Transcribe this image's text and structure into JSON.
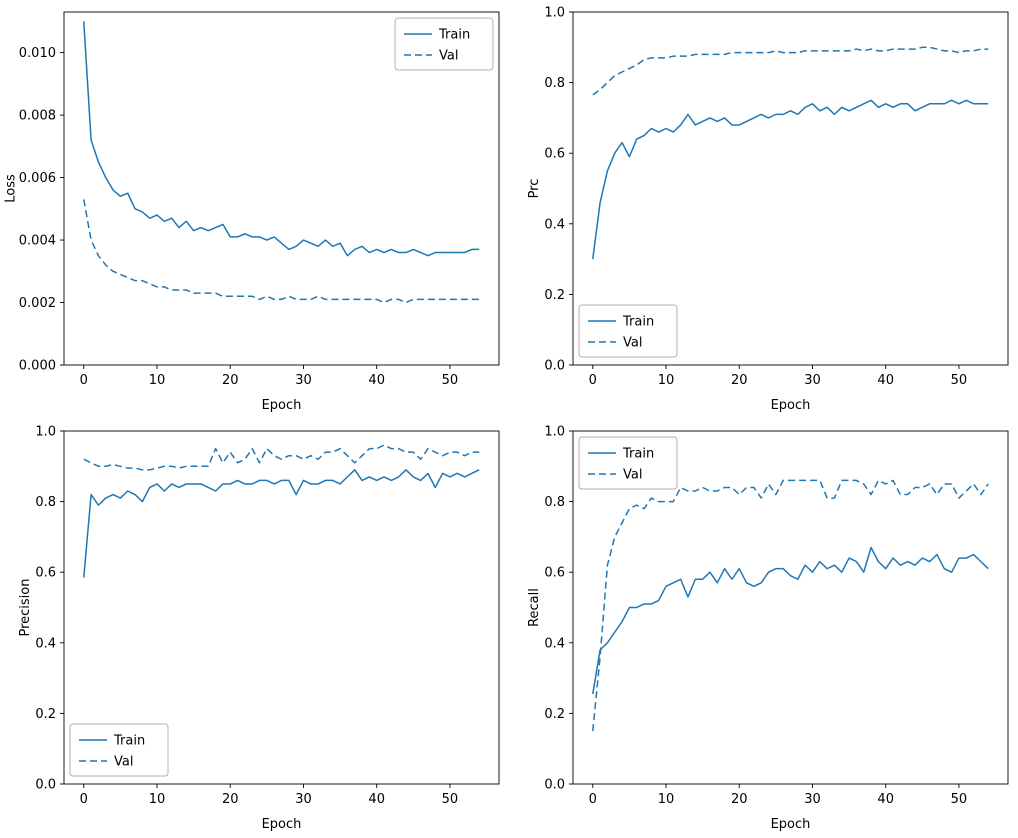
{
  "figure": {
    "background": "#ffffff",
    "accent_color": "#1f77b4"
  },
  "chart_data": [
    {
      "id": "loss",
      "type": "line",
      "title": "",
      "xlabel": "Epoch",
      "ylabel": "Loss",
      "xlim": [
        -2.7,
        56.7
      ],
      "ylim": [
        0,
        0.0113
      ],
      "xticks": [
        0,
        10,
        20,
        30,
        40,
        50
      ],
      "xtick_labels": [
        "0",
        "10",
        "20",
        "30",
        "40",
        "50"
      ],
      "yticks": [
        0,
        0.002,
        0.004,
        0.006,
        0.008,
        0.01
      ],
      "ytick_labels": [
        "0.000",
        "0.002",
        "0.004",
        "0.006",
        "0.008",
        "0.010"
      ],
      "grid": false,
      "legend": {
        "position": "upper-right",
        "entries": [
          {
            "label": "Train",
            "style": "solid"
          },
          {
            "label": "Val",
            "style": "dashed"
          }
        ]
      },
      "x": [
        0,
        1,
        2,
        3,
        4,
        5,
        6,
        7,
        8,
        9,
        10,
        11,
        12,
        13,
        14,
        15,
        16,
        17,
        18,
        19,
        20,
        21,
        22,
        23,
        24,
        25,
        26,
        27,
        28,
        29,
        30,
        31,
        32,
        33,
        34,
        35,
        36,
        37,
        38,
        39,
        40,
        41,
        42,
        43,
        44,
        45,
        46,
        47,
        48,
        49,
        50,
        51,
        52,
        53,
        54
      ],
      "series": [
        {
          "name": "Train",
          "style": "solid",
          "color": "#1f77b4",
          "values": [
            0.011,
            0.0072,
            0.0065,
            0.006,
            0.0056,
            0.0054,
            0.0055,
            0.005,
            0.0049,
            0.0047,
            0.0048,
            0.0046,
            0.0047,
            0.0044,
            0.0046,
            0.0043,
            0.0044,
            0.0043,
            0.0044,
            0.0045,
            0.0041,
            0.0041,
            0.0042,
            0.0041,
            0.0041,
            0.004,
            0.0041,
            0.0039,
            0.0037,
            0.0038,
            0.004,
            0.0039,
            0.0038,
            0.004,
            0.0038,
            0.0039,
            0.0035,
            0.0037,
            0.0038,
            0.0036,
            0.0037,
            0.0036,
            0.0037,
            0.0036,
            0.0036,
            0.0037,
            0.0036,
            0.0035,
            0.0036,
            0.0036,
            0.0036,
            0.0036,
            0.0036,
            0.0037,
            0.0037
          ]
        },
        {
          "name": "Val",
          "style": "dashed",
          "color": "#1f77b4",
          "values": [
            0.0053,
            0.004,
            0.0035,
            0.0032,
            0.003,
            0.0029,
            0.0028,
            0.0027,
            0.0027,
            0.0026,
            0.0025,
            0.0025,
            0.0024,
            0.0024,
            0.0024,
            0.0023,
            0.0023,
            0.0023,
            0.0023,
            0.0022,
            0.0022,
            0.0022,
            0.0022,
            0.0022,
            0.0021,
            0.0022,
            0.0021,
            0.0021,
            0.0022,
            0.0021,
            0.0021,
            0.0021,
            0.0022,
            0.0021,
            0.0021,
            0.0021,
            0.0021,
            0.0021,
            0.0021,
            0.0021,
            0.0021,
            0.002,
            0.0021,
            0.0021,
            0.002,
            0.0021,
            0.0021,
            0.0021,
            0.0021,
            0.0021,
            0.0021,
            0.0021,
            0.0021,
            0.0021,
            0.0021
          ]
        }
      ]
    },
    {
      "id": "prc",
      "type": "line",
      "title": "",
      "xlabel": "Epoch",
      "ylabel": "Prc",
      "xlim": [
        -2.7,
        56.7
      ],
      "ylim": [
        0,
        1
      ],
      "xticks": [
        0,
        10,
        20,
        30,
        40,
        50
      ],
      "xtick_labels": [
        "0",
        "10",
        "20",
        "30",
        "40",
        "50"
      ],
      "yticks": [
        0,
        0.2,
        0.4,
        0.6,
        0.8,
        1.0
      ],
      "ytick_labels": [
        "0.0",
        "0.2",
        "0.4",
        "0.6",
        "0.8",
        "1.0"
      ],
      "grid": false,
      "legend": {
        "position": "lower-left",
        "entries": [
          {
            "label": "Train",
            "style": "solid"
          },
          {
            "label": "Val",
            "style": "dashed"
          }
        ]
      },
      "x": [
        0,
        1,
        2,
        3,
        4,
        5,
        6,
        7,
        8,
        9,
        10,
        11,
        12,
        13,
        14,
        15,
        16,
        17,
        18,
        19,
        20,
        21,
        22,
        23,
        24,
        25,
        26,
        27,
        28,
        29,
        30,
        31,
        32,
        33,
        34,
        35,
        36,
        37,
        38,
        39,
        40,
        41,
        42,
        43,
        44,
        45,
        46,
        47,
        48,
        49,
        50,
        51,
        52,
        53,
        54
      ],
      "series": [
        {
          "name": "Train",
          "style": "solid",
          "color": "#1f77b4",
          "values": [
            0.3,
            0.46,
            0.55,
            0.6,
            0.63,
            0.59,
            0.64,
            0.65,
            0.67,
            0.66,
            0.67,
            0.66,
            0.68,
            0.71,
            0.68,
            0.69,
            0.7,
            0.69,
            0.7,
            0.68,
            0.68,
            0.69,
            0.7,
            0.71,
            0.7,
            0.71,
            0.71,
            0.72,
            0.71,
            0.73,
            0.74,
            0.72,
            0.73,
            0.71,
            0.73,
            0.72,
            0.73,
            0.74,
            0.75,
            0.73,
            0.74,
            0.73,
            0.74,
            0.74,
            0.72,
            0.73,
            0.74,
            0.74,
            0.74,
            0.75,
            0.74,
            0.75,
            0.74,
            0.74,
            0.74
          ]
        },
        {
          "name": "Val",
          "style": "dashed",
          "color": "#1f77b4",
          "values": [
            0.765,
            0.78,
            0.8,
            0.82,
            0.83,
            0.84,
            0.85,
            0.865,
            0.87,
            0.87,
            0.87,
            0.875,
            0.875,
            0.875,
            0.88,
            0.88,
            0.88,
            0.88,
            0.88,
            0.885,
            0.885,
            0.885,
            0.885,
            0.885,
            0.885,
            0.89,
            0.885,
            0.885,
            0.885,
            0.89,
            0.89,
            0.89,
            0.89,
            0.89,
            0.89,
            0.89,
            0.895,
            0.89,
            0.895,
            0.89,
            0.89,
            0.895,
            0.895,
            0.895,
            0.895,
            0.9,
            0.9,
            0.895,
            0.89,
            0.89,
            0.885,
            0.89,
            0.89,
            0.895,
            0.895
          ]
        }
      ]
    },
    {
      "id": "precision",
      "type": "line",
      "title": "",
      "xlabel": "Epoch",
      "ylabel": "Precision",
      "xlim": [
        -2.7,
        56.7
      ],
      "ylim": [
        0,
        1
      ],
      "xticks": [
        0,
        10,
        20,
        30,
        40,
        50
      ],
      "xtick_labels": [
        "0",
        "10",
        "20",
        "30",
        "40",
        "50"
      ],
      "yticks": [
        0,
        0.2,
        0.4,
        0.6,
        0.8,
        1.0
      ],
      "ytick_labels": [
        "0.0",
        "0.2",
        "0.4",
        "0.6",
        "0.8",
        "1.0"
      ],
      "grid": false,
      "legend": {
        "position": "lower-left",
        "entries": [
          {
            "label": "Train",
            "style": "solid"
          },
          {
            "label": "Val",
            "style": "dashed"
          }
        ]
      },
      "x": [
        0,
        1,
        2,
        3,
        4,
        5,
        6,
        7,
        8,
        9,
        10,
        11,
        12,
        13,
        14,
        15,
        16,
        17,
        18,
        19,
        20,
        21,
        22,
        23,
        24,
        25,
        26,
        27,
        28,
        29,
        30,
        31,
        32,
        33,
        34,
        35,
        36,
        37,
        38,
        39,
        40,
        41,
        42,
        43,
        44,
        45,
        46,
        47,
        48,
        49,
        50,
        51,
        52,
        53,
        54
      ],
      "series": [
        {
          "name": "Train",
          "style": "solid",
          "color": "#1f77b4",
          "values": [
            0.585,
            0.82,
            0.79,
            0.81,
            0.82,
            0.81,
            0.83,
            0.82,
            0.8,
            0.84,
            0.85,
            0.83,
            0.85,
            0.84,
            0.85,
            0.85,
            0.85,
            0.84,
            0.83,
            0.85,
            0.85,
            0.86,
            0.85,
            0.85,
            0.86,
            0.86,
            0.85,
            0.86,
            0.86,
            0.82,
            0.86,
            0.85,
            0.85,
            0.86,
            0.86,
            0.85,
            0.87,
            0.89,
            0.86,
            0.87,
            0.86,
            0.87,
            0.86,
            0.87,
            0.89,
            0.87,
            0.86,
            0.88,
            0.84,
            0.88,
            0.87,
            0.88,
            0.87,
            0.88,
            0.89
          ]
        },
        {
          "name": "Val",
          "style": "dashed",
          "color": "#1f77b4",
          "values": [
            0.92,
            0.91,
            0.9,
            0.9,
            0.905,
            0.9,
            0.895,
            0.895,
            0.89,
            0.89,
            0.895,
            0.9,
            0.9,
            0.895,
            0.9,
            0.9,
            0.9,
            0.9,
            0.95,
            0.91,
            0.94,
            0.91,
            0.92,
            0.95,
            0.91,
            0.95,
            0.93,
            0.92,
            0.93,
            0.93,
            0.92,
            0.93,
            0.92,
            0.94,
            0.94,
            0.95,
            0.93,
            0.91,
            0.93,
            0.95,
            0.95,
            0.96,
            0.95,
            0.95,
            0.94,
            0.94,
            0.92,
            0.95,
            0.94,
            0.93,
            0.94,
            0.94,
            0.93,
            0.94,
            0.94
          ]
        }
      ]
    },
    {
      "id": "recall",
      "type": "line",
      "title": "",
      "xlabel": "Epoch",
      "ylabel": "Recall",
      "xlim": [
        -2.7,
        56.7
      ],
      "ylim": [
        0,
        1
      ],
      "xticks": [
        0,
        10,
        20,
        30,
        40,
        50
      ],
      "xtick_labels": [
        "0",
        "10",
        "20",
        "30",
        "40",
        "50"
      ],
      "yticks": [
        0,
        0.2,
        0.4,
        0.6,
        0.8,
        1.0
      ],
      "ytick_labels": [
        "0.0",
        "0.2",
        "0.4",
        "0.6",
        "0.8",
        "1.0"
      ],
      "grid": false,
      "legend": {
        "position": "upper-left",
        "entries": [
          {
            "label": "Train",
            "style": "solid"
          },
          {
            "label": "Val",
            "style": "dashed"
          }
        ]
      },
      "x": [
        0,
        1,
        2,
        3,
        4,
        5,
        6,
        7,
        8,
        9,
        10,
        11,
        12,
        13,
        14,
        15,
        16,
        17,
        18,
        19,
        20,
        21,
        22,
        23,
        24,
        25,
        26,
        27,
        28,
        29,
        30,
        31,
        32,
        33,
        34,
        35,
        36,
        37,
        38,
        39,
        40,
        41,
        42,
        43,
        44,
        45,
        46,
        47,
        48,
        49,
        50,
        51,
        52,
        53,
        54
      ],
      "series": [
        {
          "name": "Train",
          "style": "solid",
          "color": "#1f77b4",
          "values": [
            0.255,
            0.38,
            0.4,
            0.43,
            0.46,
            0.5,
            0.5,
            0.51,
            0.51,
            0.52,
            0.56,
            0.57,
            0.58,
            0.53,
            0.58,
            0.58,
            0.6,
            0.57,
            0.61,
            0.58,
            0.61,
            0.57,
            0.56,
            0.57,
            0.6,
            0.61,
            0.61,
            0.59,
            0.58,
            0.62,
            0.6,
            0.63,
            0.61,
            0.62,
            0.6,
            0.64,
            0.63,
            0.6,
            0.67,
            0.63,
            0.61,
            0.64,
            0.62,
            0.63,
            0.62,
            0.64,
            0.63,
            0.65,
            0.61,
            0.6,
            0.64,
            0.64,
            0.65,
            0.63,
            0.61
          ]
        },
        {
          "name": "Val",
          "style": "dashed",
          "color": "#1f77b4",
          "values": [
            0.15,
            0.36,
            0.62,
            0.7,
            0.74,
            0.78,
            0.79,
            0.78,
            0.81,
            0.8,
            0.8,
            0.8,
            0.84,
            0.83,
            0.83,
            0.84,
            0.83,
            0.83,
            0.84,
            0.84,
            0.82,
            0.84,
            0.84,
            0.81,
            0.85,
            0.82,
            0.86,
            0.86,
            0.86,
            0.86,
            0.86,
            0.86,
            0.81,
            0.81,
            0.86,
            0.86,
            0.86,
            0.85,
            0.82,
            0.86,
            0.85,
            0.86,
            0.82,
            0.82,
            0.84,
            0.84,
            0.85,
            0.82,
            0.85,
            0.85,
            0.81,
            0.83,
            0.85,
            0.82,
            0.85
          ]
        }
      ]
    }
  ]
}
